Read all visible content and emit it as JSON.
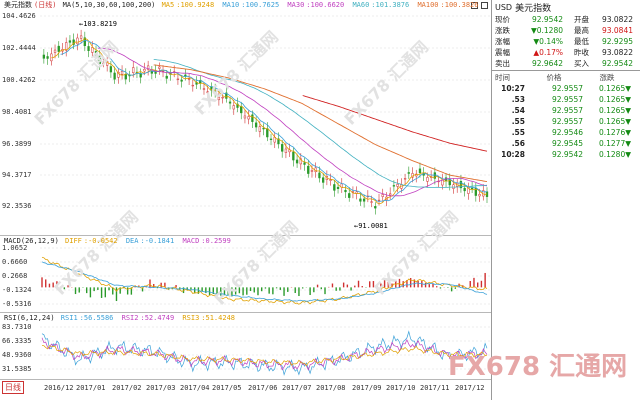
{
  "main_legend": {
    "title": "美元指数",
    "period_tag": "(日线)",
    "ma_label": "MA(5,10,30,60,100,200)",
    "ma_items": [
      {
        "label": "MA5",
        "value": "100.9248",
        "color": "#e0a000"
      },
      {
        "label": "MA10",
        "value": "100.7625",
        "color": "#3aa0d8"
      },
      {
        "label": "MA30",
        "value": "100.6620",
        "color": "#c040c0"
      },
      {
        "label": "MA60",
        "value": "101.3876",
        "color": "#40b0c0"
      },
      {
        "label": "MA100",
        "value": "100.3826",
        "color": "#e07030"
      }
    ]
  },
  "y_axis_main": [
    "104.4626",
    "102.4444",
    "100.4262",
    "98.4081",
    "96.3899",
    "94.3717",
    "92.3536"
  ],
  "annotations": {
    "high": "103.8219",
    "low": "91.0081"
  },
  "macd_legend": {
    "label": "MACD(26,12,9)",
    "items": [
      {
        "label": "DIFF",
        "value": "-0.0542",
        "color": "#e0a000"
      },
      {
        "label": "DEA",
        "value": "-0.1841",
        "color": "#3aa0d8"
      },
      {
        "label": "MACD",
        "value": "0.2599",
        "color": "#c040c0"
      }
    ]
  },
  "y_axis_macd": [
    "1.0652",
    "0.6660",
    "0.2668",
    "-0.1324",
    "-0.5316"
  ],
  "rsi_legend": {
    "label": "RSI(6,12,24)",
    "items": [
      {
        "label": "RSI1",
        "value": "56.5586",
        "color": "#3aa0d8"
      },
      {
        "label": "RSI2",
        "value": "52.4749",
        "color": "#c040c0"
      },
      {
        "label": "RSI3",
        "value": "51.4248",
        "color": "#e0a000"
      }
    ]
  },
  "y_axis_rsi": [
    "83.7310",
    "66.3335",
    "48.9360",
    "31.5385"
  ],
  "x_axis": {
    "period_button": "日线",
    "labels": [
      "2016/12",
      "2017/01",
      "2017/02",
      "2017/03",
      "2017/04",
      "2017/05",
      "2017/06",
      "2017/07",
      "2017/08",
      "2017/09",
      "2017/10",
      "2017/11",
      "2017/12"
    ]
  },
  "panel": {
    "symbol": "USD",
    "name": "美元指数",
    "quote_rows": [
      {
        "l1": "现价",
        "v1": "92.9542",
        "c1": "green",
        "l2": "开盘",
        "v2": "93.0822",
        "c2": ""
      },
      {
        "l1": "涨跌",
        "v1": "▼0.1280",
        "c1": "green",
        "l2": "最高",
        "v2": "93.0841",
        "c2": "red"
      },
      {
        "l1": "涨幅",
        "v1": "▼0.14%",
        "c1": "green",
        "l2": "最低",
        "v2": "92.9295",
        "c2": "green"
      },
      {
        "l1": "震幅",
        "v1": "▲0.17%",
        "c1": "red",
        "l2": "昨收",
        "v2": "93.0822",
        "c2": ""
      },
      {
        "l1": "卖出",
        "v1": "92.9642",
        "c1": "green",
        "l2": "买入",
        "v2": "92.9542",
        "c2": "green"
      }
    ],
    "tick_header": {
      "time": "时间",
      "price": "价格",
      "change": "涨跌"
    },
    "ticks": [
      {
        "time": "10:27",
        "price": "92.9557",
        "change": "0.1265▼"
      },
      {
        "time": ".53",
        "price": "92.9557",
        "change": "0.1265▼"
      },
      {
        "time": ".54",
        "price": "92.9557",
        "change": "0.1265▼"
      },
      {
        "time": ".55",
        "price": "92.9557",
        "change": "0.1265▼"
      },
      {
        "time": ".55",
        "price": "92.9546",
        "change": "0.1276▼"
      },
      {
        "time": ".56",
        "price": "92.9545",
        "change": "0.1277▼"
      },
      {
        "time": "10:28",
        "price": "92.9542",
        "change": "0.1280▼"
      }
    ]
  },
  "watermark": "FX678 汇通网",
  "brand": "FX678 汇通网",
  "chart_data": [
    {
      "type": "line",
      "subtype": "candlestick",
      "title": "美元指数 (日线)",
      "x_range": [
        "2016/12",
        "2017/12"
      ],
      "ylim": [
        91.0,
        104.5
      ],
      "x": [
        "2016/12",
        "2017/01",
        "2017/02",
        "2017/03",
        "2017/04",
        "2017/05",
        "2017/06",
        "2017/07",
        "2017/08",
        "2017/09",
        "2017/10",
        "2017/11",
        "2017/12"
      ],
      "series": [
        {
          "name": "美元指数",
          "values": [
            101.5,
            102.9,
            100.5,
            100.9,
            100.2,
            99.0,
            97.0,
            95.0,
            93.5,
            92.5,
            94.5,
            93.8,
            93.0
          ]
        },
        {
          "name": "MA100",
          "values": [
            null,
            null,
            null,
            101.2,
            100.9,
            100.4,
            99.7,
            98.8,
            97.5,
            96.2,
            95.2,
            94.3,
            93.9
          ]
        },
        {
          "name": "MA200",
          "values": [
            null,
            null,
            null,
            null,
            null,
            null,
            null,
            99.3,
            98.6,
            97.8,
            97.0,
            96.3,
            95.8
          ]
        }
      ]
    },
    {
      "type": "bar",
      "title": "MACD(26,12,9)",
      "ylim": [
        -0.5316,
        1.0652
      ],
      "x": [
        "2016/12",
        "2017/01",
        "2017/02",
        "2017/03",
        "2017/04",
        "2017/05",
        "2017/06",
        "2017/07",
        "2017/08",
        "2017/09",
        "2017/10",
        "2017/11",
        "2017/12"
      ],
      "series": [
        {
          "name": "DIFF",
          "values": [
            0.75,
            0.35,
            -0.05,
            0.05,
            -0.1,
            -0.3,
            -0.35,
            -0.4,
            -0.3,
            -0.1,
            0.2,
            0.05,
            -0.05
          ]
        },
        {
          "name": "DEA",
          "values": [
            0.65,
            0.4,
            0.05,
            0.0,
            -0.05,
            -0.2,
            -0.3,
            -0.35,
            -0.3,
            -0.15,
            0.1,
            0.08,
            -0.18
          ]
        }
      ]
    },
    {
      "type": "line",
      "title": "RSI(6,12,24)",
      "ylim": [
        25,
        90
      ],
      "x": [
        "2016/12",
        "2017/01",
        "2017/02",
        "2017/03",
        "2017/04",
        "2017/05",
        "2017/06",
        "2017/07",
        "2017/08",
        "2017/09",
        "2017/10",
        "2017/11",
        "2017/12"
      ],
      "series": [
        {
          "name": "RSI1",
          "values": [
            70,
            45,
            60,
            55,
            40,
            42,
            38,
            35,
            45,
            60,
            70,
            48,
            56
          ]
        },
        {
          "name": "RSI2",
          "values": [
            66,
            48,
            57,
            53,
            43,
            44,
            40,
            38,
            45,
            56,
            64,
            50,
            52
          ]
        },
        {
          "name": "RSI3",
          "values": [
            62,
            52,
            54,
            52,
            46,
            45,
            43,
            41,
            46,
            52,
            58,
            51,
            51
          ]
        }
      ]
    }
  ]
}
